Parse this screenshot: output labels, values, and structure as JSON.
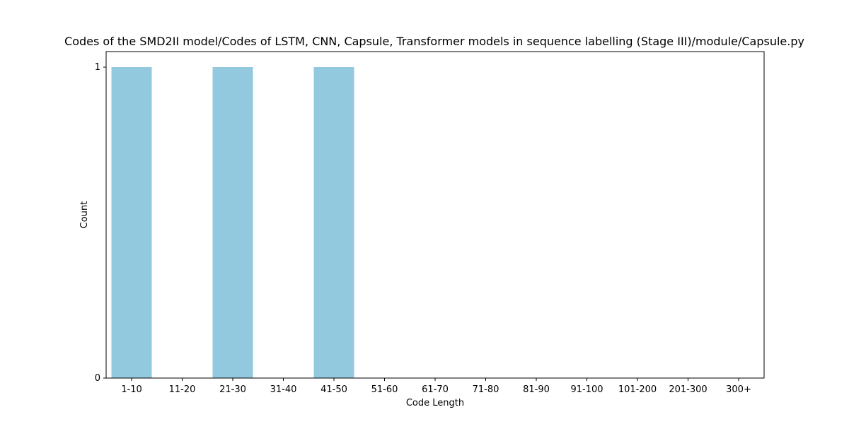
{
  "chart_data": {
    "type": "bar",
    "title": "Codes of the SMD2II model/Codes of LSTM, CNN, Capsule, Transformer models in sequence labelling (Stage III)/module/Capsule.py",
    "xlabel": "Code Length",
    "ylabel": "Count",
    "categories": [
      "1-10",
      "11-20",
      "21-30",
      "31-40",
      "41-50",
      "51-60",
      "61-70",
      "71-80",
      "81-90",
      "91-100",
      "101-200",
      "201-300",
      "300+"
    ],
    "values": [
      1,
      0,
      1,
      0,
      1,
      0,
      0,
      0,
      0,
      0,
      0,
      0,
      0
    ],
    "ylim": [
      0,
      1
    ],
    "yticks": [
      0,
      1
    ],
    "bar_color": "#92c9de",
    "grid": false,
    "legend": "none"
  }
}
